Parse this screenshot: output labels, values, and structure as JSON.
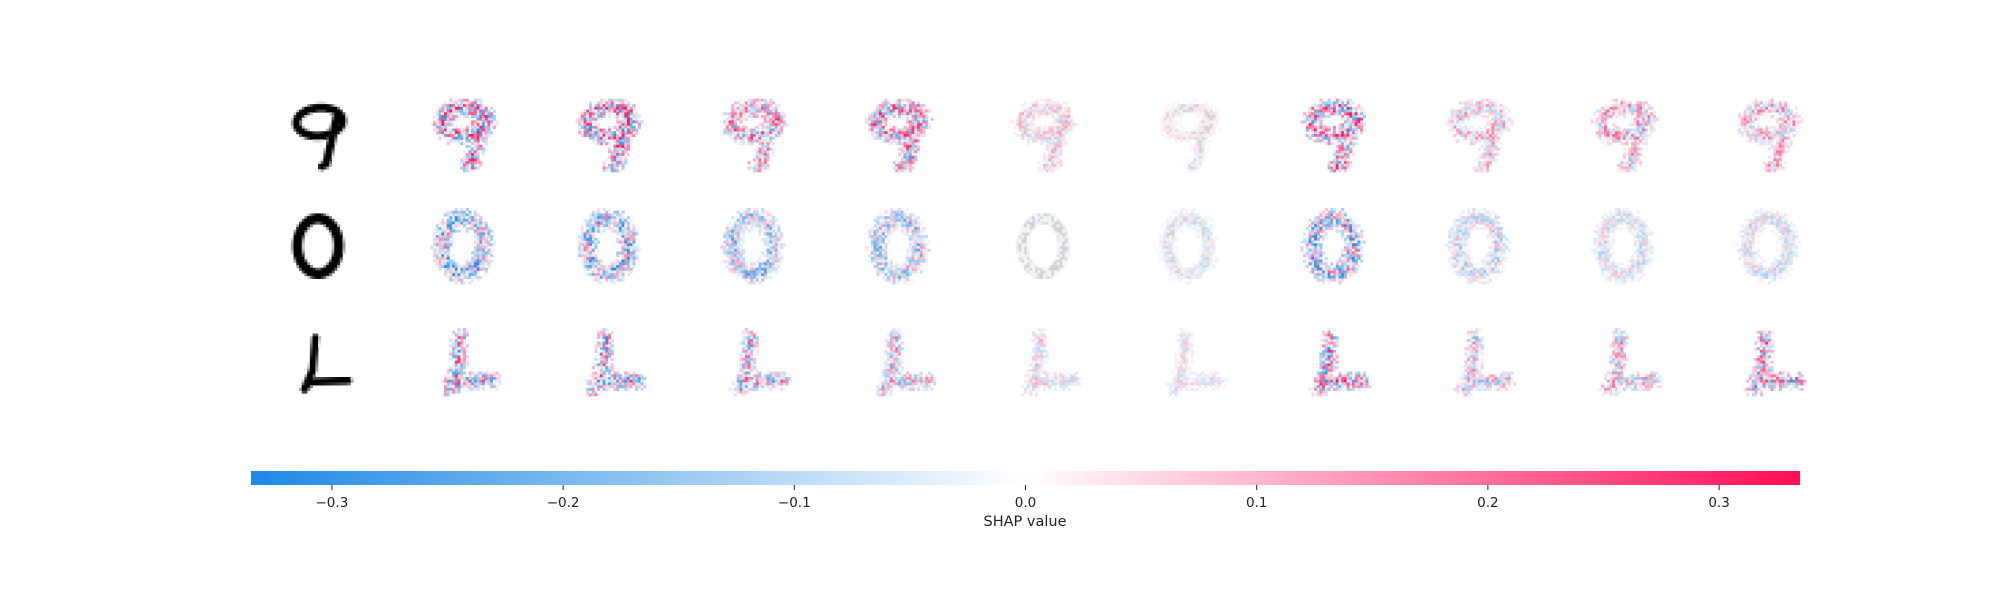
{
  "chart_data": {
    "type": "heatmap",
    "title": "",
    "rows": [
      "9",
      "0",
      "L"
    ],
    "row_amplitude": [
      0.3,
      0.26,
      0.3
    ],
    "columns": 10,
    "column_intensity": [
      [
        0.95,
        0.95,
        0.75,
        0.85,
        0.35,
        0.12,
        0.95,
        0.45,
        0.55,
        0.5
      ],
      [
        0.85,
        0.85,
        0.7,
        0.65,
        0.08,
        0.18,
        0.95,
        0.45,
        0.35,
        0.35
      ],
      [
        0.85,
        0.9,
        0.75,
        0.65,
        0.35,
        0.25,
        0.95,
        0.55,
        0.6,
        0.9
      ]
    ],
    "colorbar": {
      "label": "SHAP value",
      "range": [
        -0.335,
        0.335
      ],
      "ticks": [
        -0.3,
        -0.2,
        -0.1,
        0.0,
        0.1,
        0.2,
        0.3
      ],
      "tick_labels": [
        "−0.3",
        "−0.2",
        "−0.1",
        "0.0",
        "0.1",
        "0.2",
        "0.3"
      ],
      "negative_color": "#1e88e5",
      "neutral_color": "#ffffff",
      "positive_color": "#ff0d57"
    },
    "grid": false,
    "legend": "none"
  }
}
